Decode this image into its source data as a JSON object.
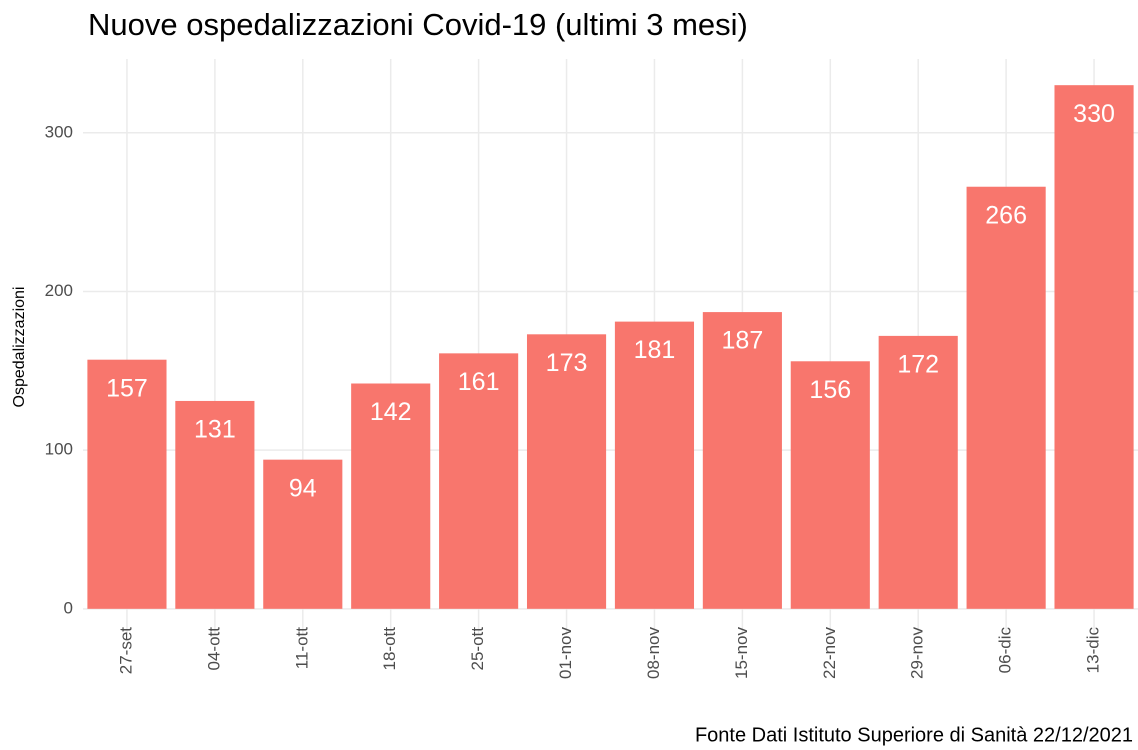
{
  "chart_data": {
    "type": "bar",
    "title": "Nuove ospedalizzazioni Covid-19 (ultimi 3 mesi)",
    "y_label": "Ospedalizzazioni",
    "caption": "Fonte Dati Istituto Superiore di Sanità 22/12/2021",
    "categories": [
      "27-set",
      "04-ott",
      "11-ott",
      "18-ott",
      "25-ott",
      "01-nov",
      "08-nov",
      "15-nov",
      "22-nov",
      "29-nov",
      "06-dic",
      "13-dic"
    ],
    "values": [
      157,
      131,
      94,
      142,
      161,
      173,
      181,
      187,
      156,
      172,
      266,
      330
    ],
    "color": "#f8766d",
    "ylim": [
      -16.5,
      346.5
    ],
    "yticks": [
      0,
      100,
      200,
      300
    ],
    "grid": true
  }
}
